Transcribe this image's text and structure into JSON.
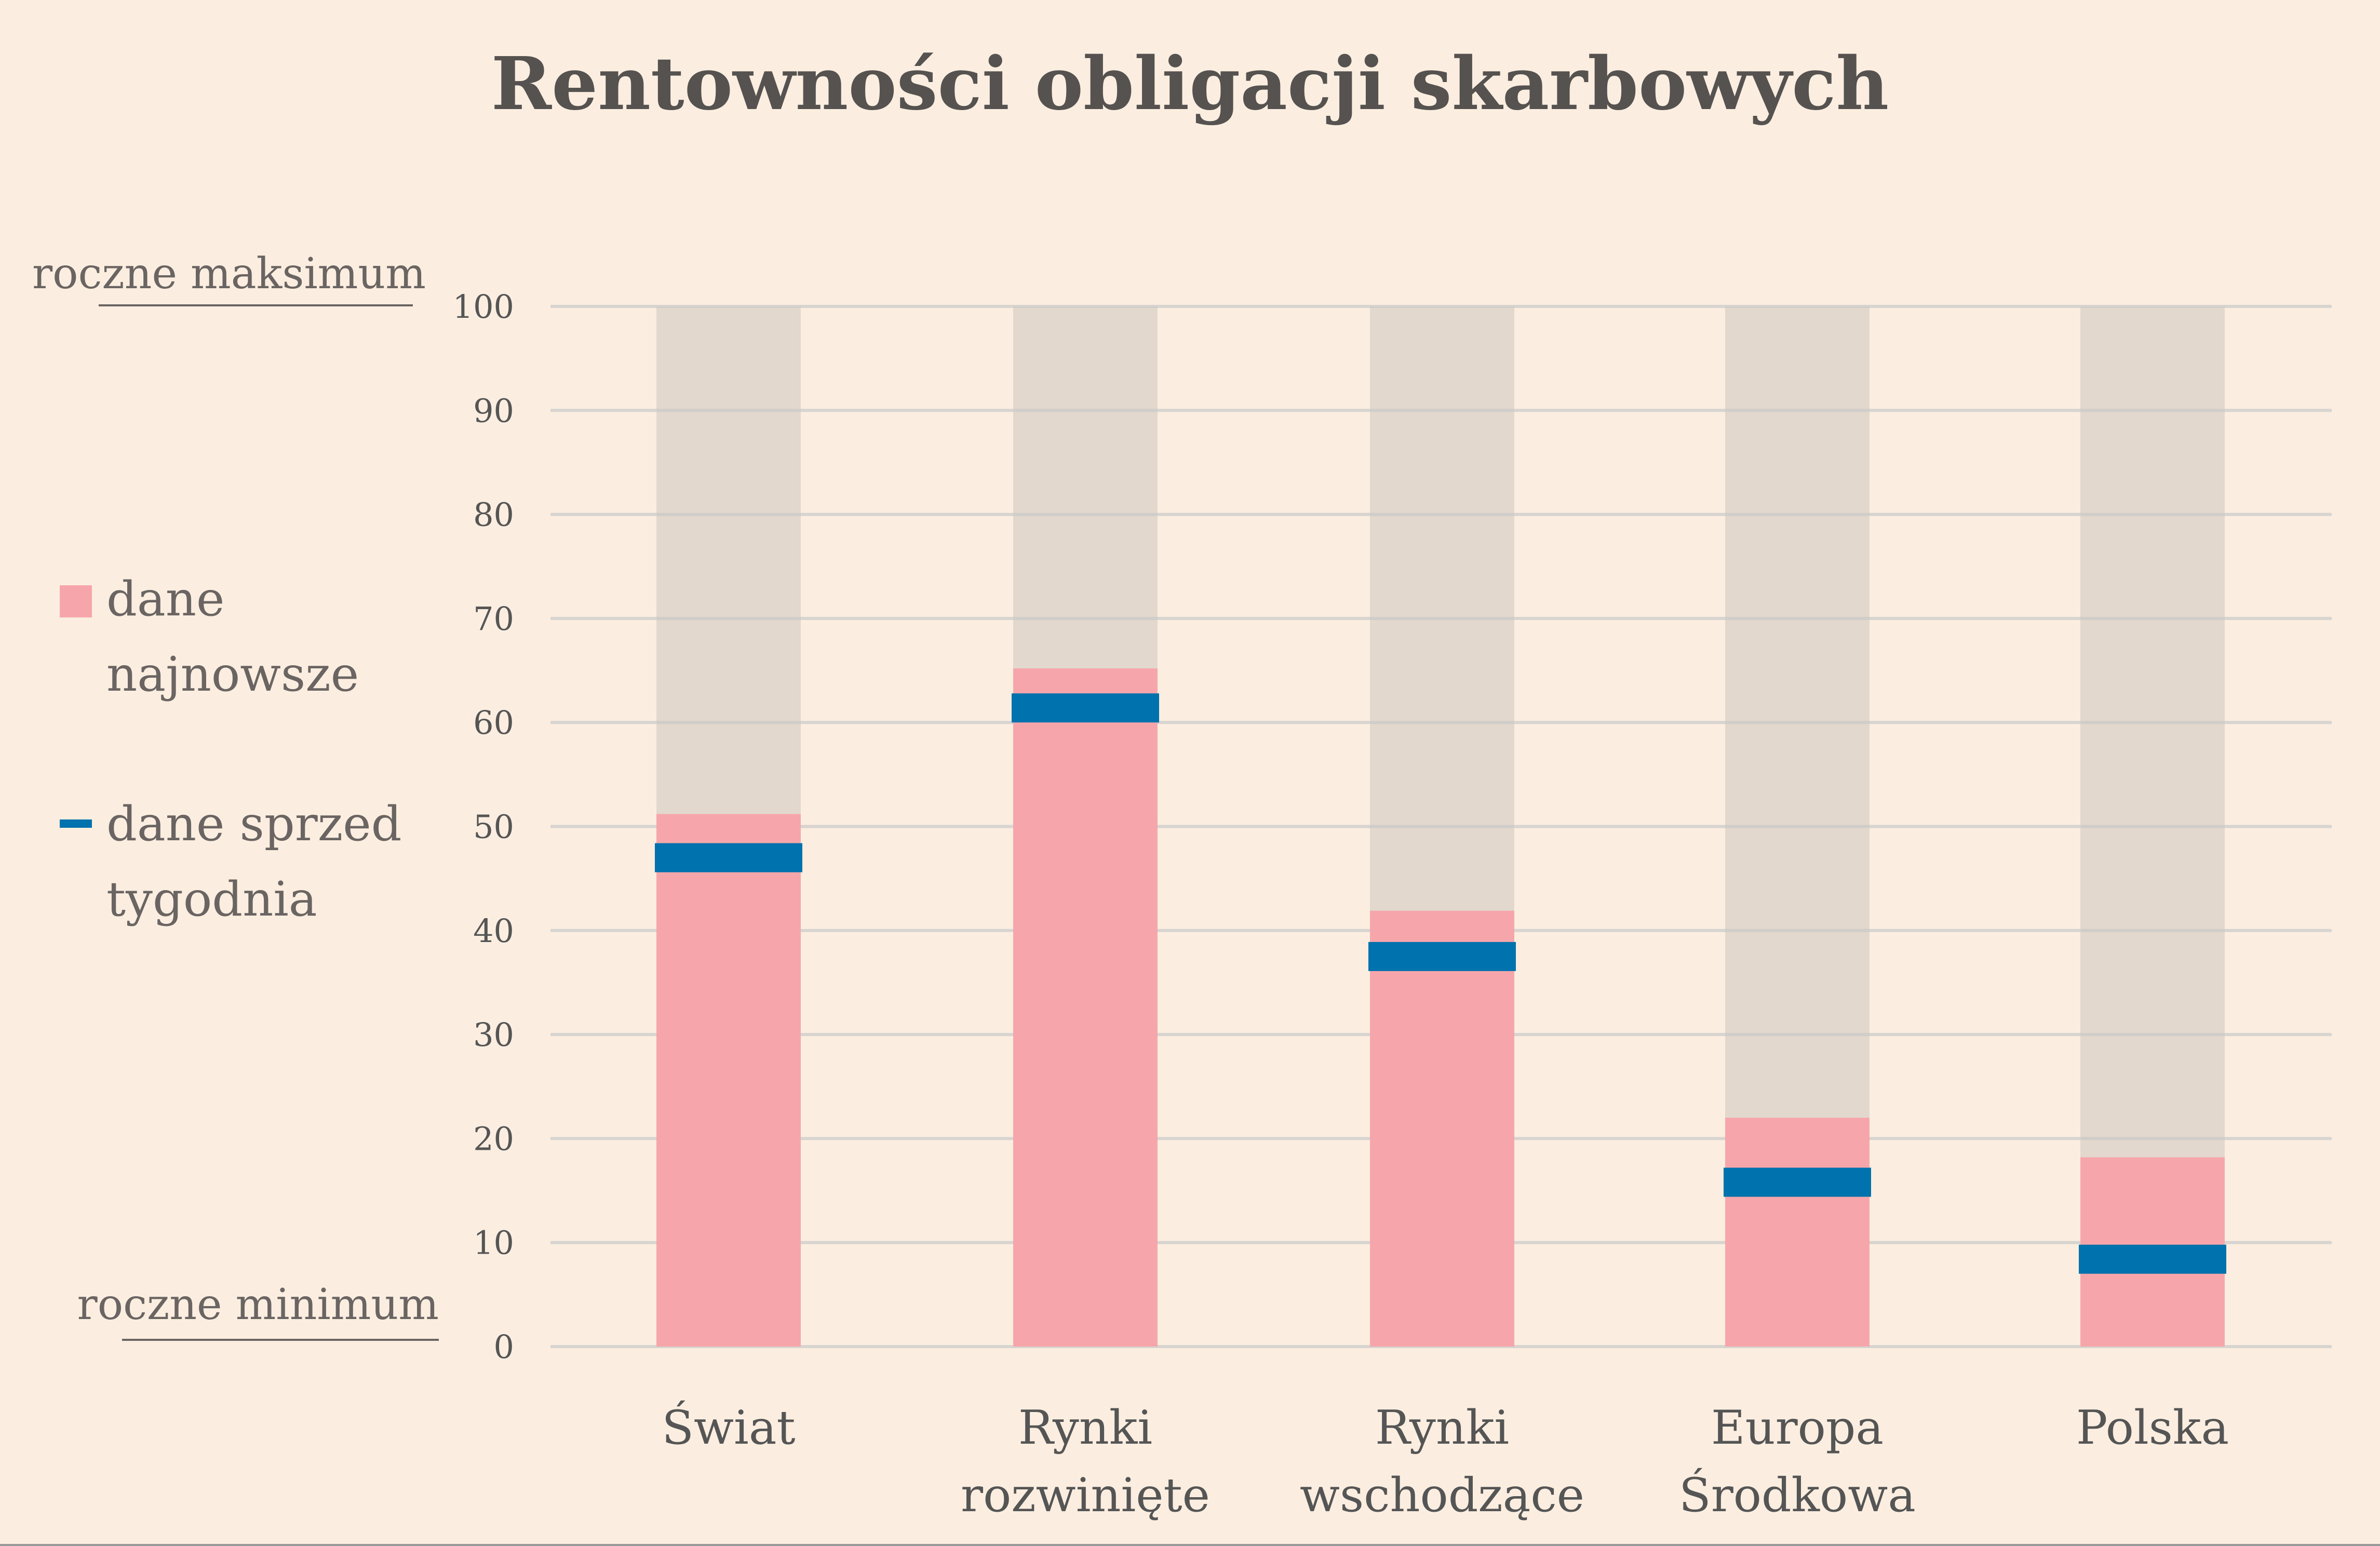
{
  "chart_data": {
    "type": "bar",
    "title": "Rentowności obligacji skarbowych",
    "categories": [
      [
        "Świat"
      ],
      [
        "Rynki",
        "rozwinięte"
      ],
      [
        "Rynki",
        "wschodzące"
      ],
      [
        "Europa",
        "Środkowa"
      ],
      [
        "Polska"
      ]
    ],
    "series": [
      {
        "name": "dane najnowsze",
        "legend_lines": [
          "dane",
          "najnowsze"
        ],
        "values": [
          51.2,
          65.2,
          41.9,
          22.0,
          18.2
        ],
        "color": "#F6A6AB"
      },
      {
        "name": "dane sprzed tygodnia",
        "legend_lines": [
          "dane sprzed",
          "tygodnia"
        ],
        "values": [
          47.0,
          61.4,
          37.5,
          15.8,
          8.4
        ],
        "color": "#0072AD"
      }
    ],
    "background_range": {
      "values": [
        100,
        100,
        100,
        100,
        100
      ],
      "color": "#E2D8CD"
    },
    "ylim": [
      0,
      100
    ],
    "yticks": [
      0,
      10,
      20,
      30,
      40,
      50,
      60,
      70,
      80,
      90,
      100
    ],
    "y_top_label": "roczne maksimum",
    "y_bottom_label": "roczne minimum",
    "grid": true,
    "legend_placement": "left",
    "background_color": "#FBEEE0"
  }
}
